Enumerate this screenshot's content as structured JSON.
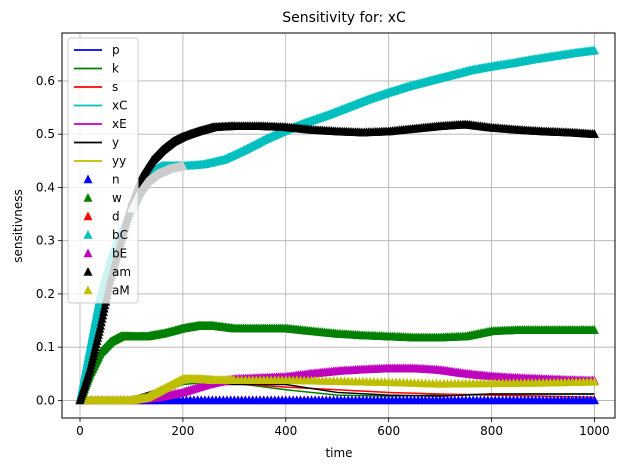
{
  "chart_data": {
    "type": "line",
    "title": "Sensitivity for: xC",
    "xlabel": "time",
    "ylabel": "sensitivness",
    "xlim": [
      -35,
      1040
    ],
    "ylim": [
      -0.033,
      0.69
    ],
    "xticks": [
      0,
      200,
      400,
      600,
      800,
      1000
    ],
    "yticks": [
      0.0,
      0.1,
      0.2,
      0.3,
      0.4,
      0.5,
      0.6
    ],
    "ytick_labels": [
      "0.0",
      "0.1",
      "0.2",
      "0.3",
      "0.4",
      "0.5",
      "0.6"
    ],
    "grid": true,
    "legend_position": "upper-left",
    "line_series": [
      {
        "name": "p",
        "color": "#0000ff",
        "x": [
          0,
          100,
          200,
          300,
          400,
          500,
          600,
          700,
          800,
          900,
          1000
        ],
        "y": [
          0,
          0,
          0,
          0,
          0,
          0,
          0,
          0,
          0,
          0,
          0
        ]
      },
      {
        "name": "k",
        "color": "#008000",
        "x": [
          0,
          100,
          150,
          200,
          260,
          320,
          400,
          500,
          600,
          700,
          800,
          900,
          1000
        ],
        "y": [
          0,
          0,
          0.01,
          0.03,
          0.035,
          0.03,
          0.02,
          0.01,
          0.008,
          0.01,
          0.012,
          0.012,
          0.012
        ]
      },
      {
        "name": "s",
        "color": "#ff0000",
        "x": [
          0,
          100,
          150,
          200,
          260,
          320,
          400,
          500,
          600,
          700,
          800,
          900,
          1000
        ],
        "y": [
          0,
          0,
          0.02,
          0.035,
          0.035,
          0.03,
          0.025,
          0.02,
          0.015,
          0.012,
          0.01,
          0.008,
          0.006
        ]
      },
      {
        "name": "xC",
        "color": "#00bfbf",
        "x": [
          0,
          100,
          200,
          300,
          400,
          500,
          600,
          700,
          800,
          900,
          1000
        ],
        "y": [
          0,
          0,
          0,
          0,
          0,
          0,
          0,
          0,
          0,
          0,
          0
        ]
      },
      {
        "name": "xE",
        "color": "#bf00bf",
        "x": [
          0,
          100,
          200,
          300,
          400,
          500,
          600,
          700,
          800,
          900,
          1000
        ],
        "y": [
          0,
          0,
          0,
          0,
          0,
          0,
          0,
          0,
          0,
          0,
          0
        ]
      },
      {
        "name": "y",
        "color": "#000000",
        "x": [
          0,
          100,
          150,
          200,
          240,
          280,
          330,
          400,
          500,
          600,
          700,
          800,
          900,
          1000
        ],
        "y": [
          0,
          0.005,
          0.02,
          0.035,
          0.035,
          0.03,
          0.03,
          0.03,
          0.015,
          0.01,
          0.008,
          0.012,
          0.012,
          0.012
        ]
      },
      {
        "name": "yy",
        "color": "#bfbf00",
        "x": [
          0,
          100,
          200,
          300,
          400,
          500,
          600,
          700,
          800,
          900,
          1000
        ],
        "y": [
          0,
          0,
          0,
          0,
          0,
          0,
          0,
          0,
          0,
          0,
          0
        ]
      }
    ],
    "marker_series": [
      {
        "name": "n",
        "color": "#0000ff",
        "x": [
          0,
          100,
          200,
          300,
          400,
          500,
          600,
          700,
          800,
          900,
          1000
        ],
        "y": [
          0,
          0,
          0,
          0,
          0,
          0,
          0,
          0,
          0,
          0,
          0
        ]
      },
      {
        "name": "w",
        "color": "#008000",
        "x": [
          0,
          20,
          40,
          60,
          80,
          100,
          130,
          160,
          200,
          230,
          260,
          300,
          350,
          400,
          450,
          500,
          550,
          600,
          650,
          700,
          750,
          800,
          850,
          900,
          950,
          1000
        ],
        "y": [
          0,
          0.05,
          0.09,
          0.11,
          0.12,
          0.12,
          0.12,
          0.125,
          0.135,
          0.14,
          0.14,
          0.135,
          0.135,
          0.135,
          0.13,
          0.125,
          0.122,
          0.12,
          0.118,
          0.118,
          0.12,
          0.13,
          0.132,
          0.132,
          0.132,
          0.132
        ]
      },
      {
        "name": "d",
        "color": "#ff0000",
        "x": [
          0,
          100,
          200,
          300,
          400,
          500,
          600,
          700,
          800,
          900,
          1000
        ],
        "y": [
          0,
          0,
          0,
          0,
          0,
          0,
          0,
          0,
          0,
          0,
          0
        ]
      },
      {
        "name": "bC",
        "color": "#00bfbf",
        "x": [
          0,
          10,
          20,
          30,
          40,
          60,
          80,
          100,
          120,
          140,
          160,
          180,
          200,
          240,
          280,
          320,
          360,
          400,
          440,
          480,
          520,
          560,
          600,
          640,
          680,
          720,
          760,
          800,
          840,
          880,
          920,
          960,
          1000
        ],
        "y": [
          0,
          0.05,
          0.1,
          0.15,
          0.2,
          0.27,
          0.32,
          0.36,
          0.4,
          0.43,
          0.44,
          0.44,
          0.44,
          0.443,
          0.452,
          0.47,
          0.49,
          0.507,
          0.522,
          0.535,
          0.55,
          0.565,
          0.578,
          0.59,
          0.6,
          0.61,
          0.62,
          0.627,
          0.633,
          0.64,
          0.646,
          0.652,
          0.657
        ]
      },
      {
        "name": "bE",
        "color": "#bf00bf",
        "x": [
          0,
          100,
          150,
          200,
          250,
          300,
          350,
          400,
          450,
          500,
          550,
          600,
          650,
          700,
          750,
          800,
          850,
          900,
          950,
          1000
        ],
        "y": [
          0,
          0,
          0.005,
          0.015,
          0.03,
          0.04,
          0.042,
          0.044,
          0.05,
          0.055,
          0.058,
          0.06,
          0.06,
          0.057,
          0.05,
          0.045,
          0.042,
          0.04,
          0.038,
          0.037
        ]
      },
      {
        "name": "am",
        "color": "#000000",
        "x": [
          0,
          20,
          40,
          60,
          80,
          100,
          120,
          140,
          160,
          180,
          200,
          230,
          260,
          300,
          350,
          400,
          450,
          500,
          550,
          600,
          650,
          700,
          750,
          800,
          850,
          900,
          950,
          1000
        ],
        "y": [
          0,
          0.06,
          0.14,
          0.23,
          0.3,
          0.37,
          0.42,
          0.45,
          0.47,
          0.485,
          0.495,
          0.505,
          0.513,
          0.515,
          0.515,
          0.513,
          0.508,
          0.505,
          0.503,
          0.505,
          0.51,
          0.515,
          0.518,
          0.512,
          0.508,
          0.505,
          0.503,
          0.5
        ]
      },
      {
        "name": "aM",
        "color": "#bfbf00",
        "x": [
          0,
          50,
          100,
          130,
          160,
          200,
          230,
          260,
          300,
          400,
          500,
          600,
          700,
          800,
          900,
          1000
        ],
        "y": [
          0,
          0,
          0,
          0.005,
          0.02,
          0.04,
          0.04,
          0.038,
          0.038,
          0.038,
          0.036,
          0.034,
          0.031,
          0.032,
          0.033,
          0.035
        ]
      }
    ],
    "overlay_band": {
      "color": "#cccccc",
      "x": [
        100,
        115,
        130,
        150,
        175,
        200
      ],
      "y": [
        0.36,
        0.39,
        0.41,
        0.425,
        0.435,
        0.44
      ]
    }
  }
}
